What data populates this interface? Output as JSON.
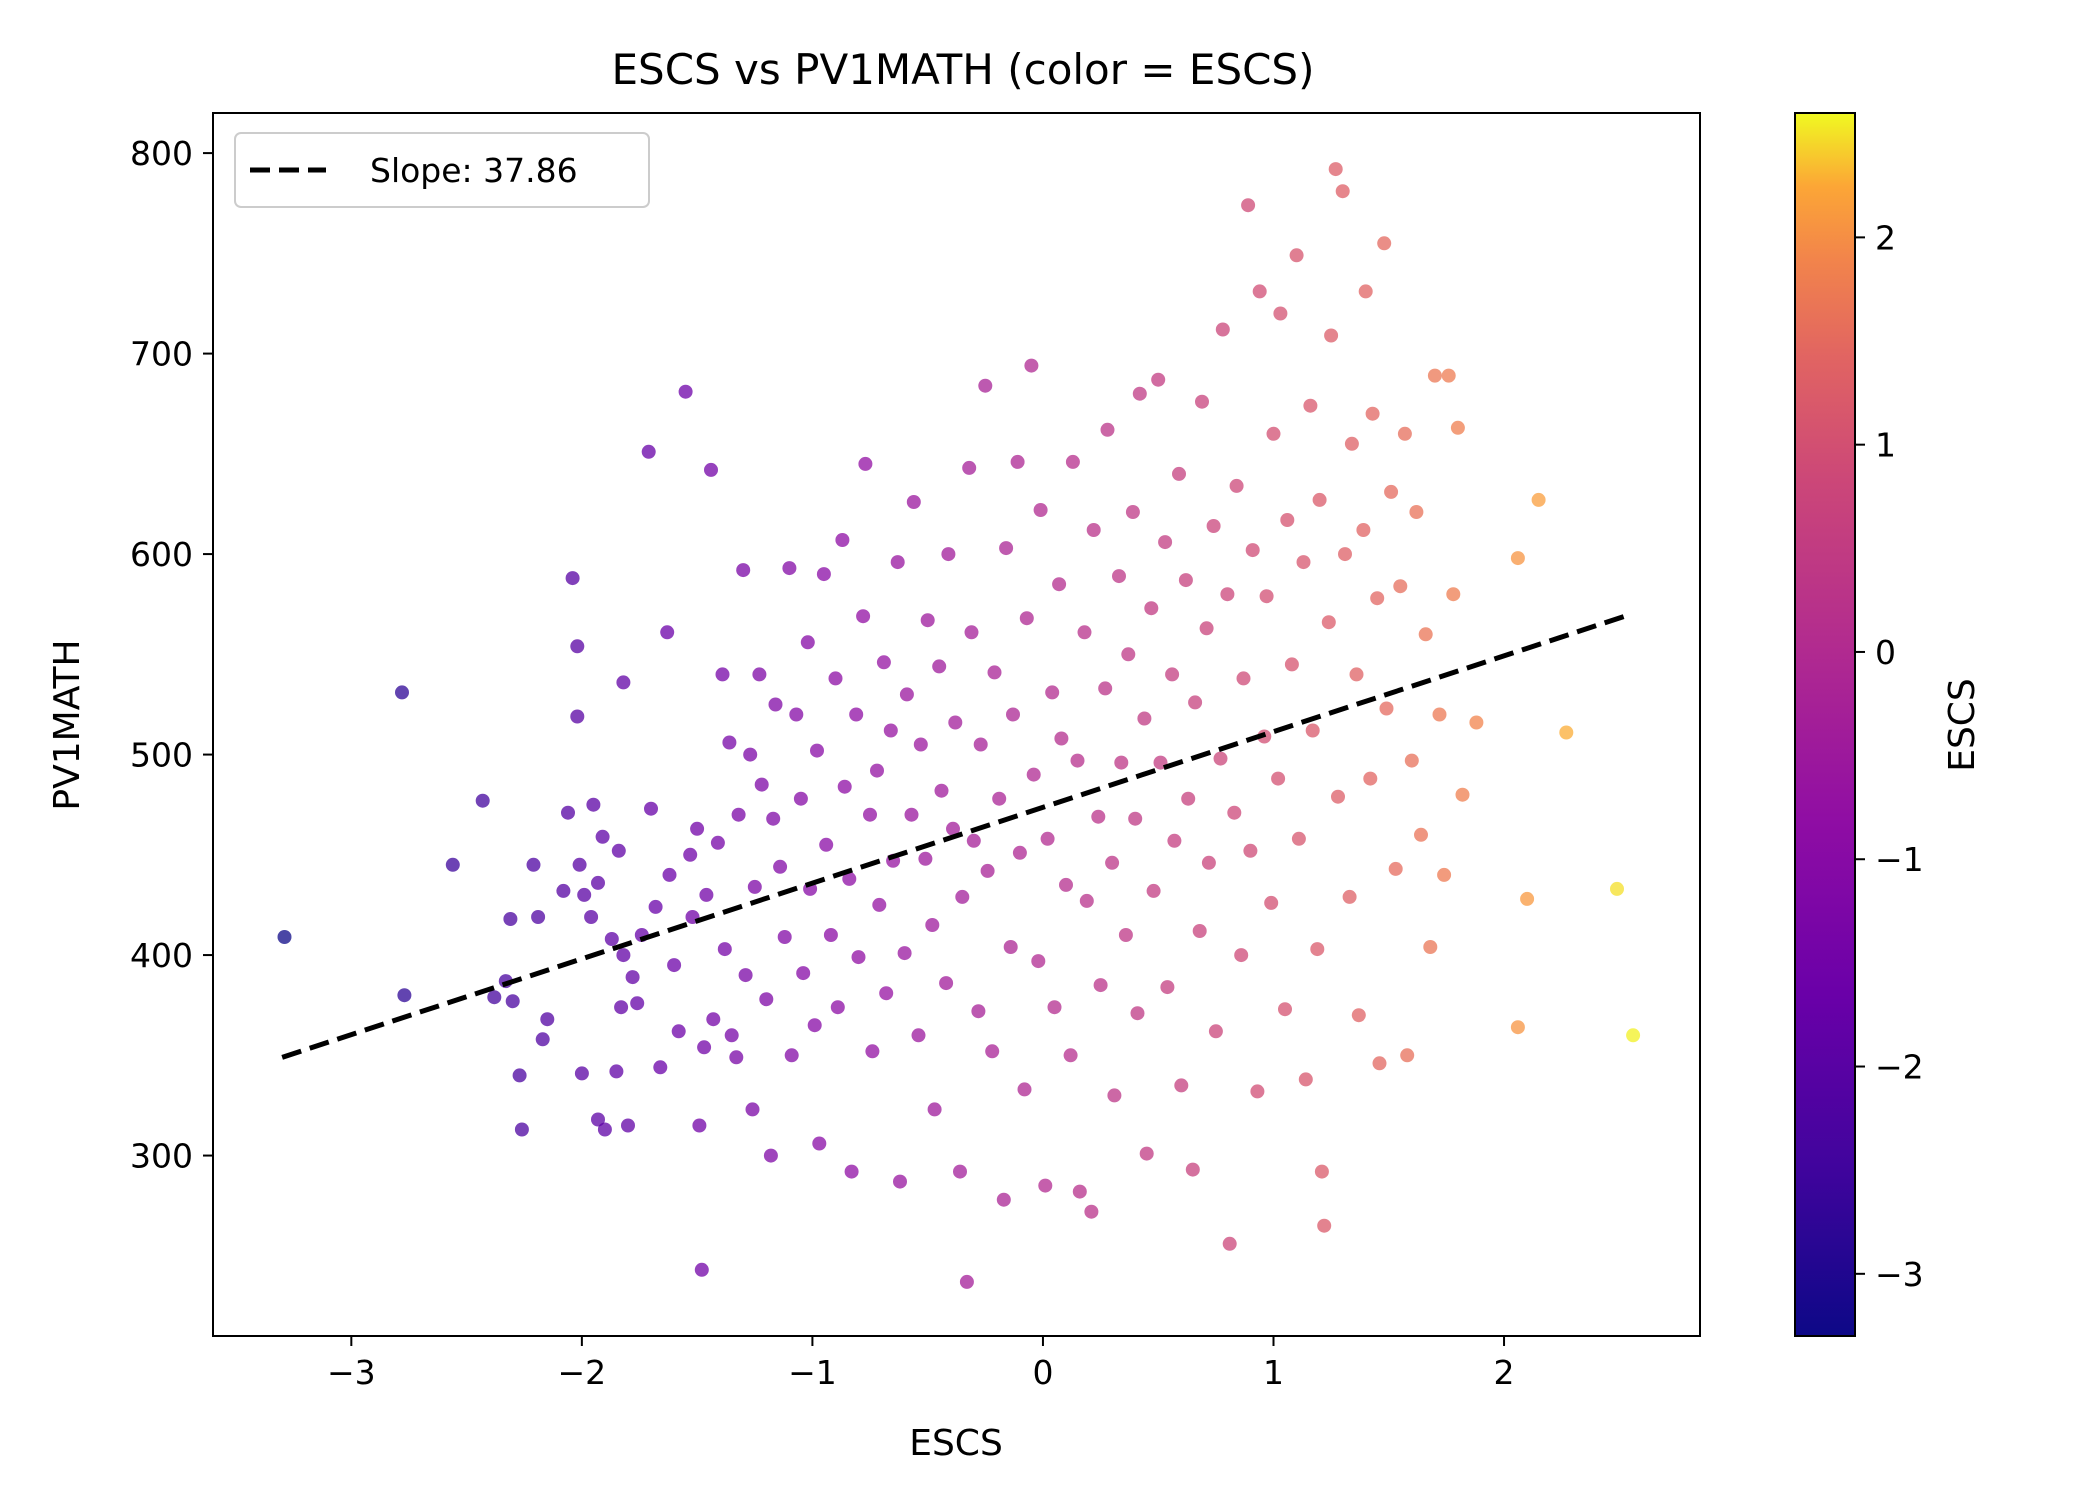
{
  "chart_data": {
    "type": "scatter",
    "title": "ESCS vs PV1MATH (color = ESCS)",
    "xlabel": "ESCS",
    "ylabel": "PV1MATH",
    "xlim": [
      -3.6,
      2.85
    ],
    "ylim": [
      210,
      820
    ],
    "xticks": [
      -3,
      -2,
      -1,
      0,
      1,
      2
    ],
    "yticks": [
      300,
      400,
      500,
      600,
      700,
      800
    ],
    "grid": false,
    "legend": {
      "position": "upper-left",
      "label": "Slope: 37.86"
    },
    "regression": {
      "slope": 37.86,
      "x": [
        -3.3,
        2.55
      ],
      "y": [
        349,
        570
      ],
      "style": "dashed",
      "color": "#000000"
    },
    "colorbar": {
      "label": "ESCS",
      "colormap": "plasma",
      "min": -3.3,
      "max": 2.6,
      "ticks": [
        -3,
        -2,
        -1,
        0,
        1,
        2
      ]
    },
    "points": [
      [
        -3.29,
        409
      ],
      [
        -2.78,
        531
      ],
      [
        -2.77,
        380
      ],
      [
        -2.56,
        445
      ],
      [
        -2.43,
        477
      ],
      [
        -2.38,
        379
      ],
      [
        -2.33,
        387
      ],
      [
        -2.31,
        418
      ],
      [
        -2.3,
        377
      ],
      [
        -2.27,
        340
      ],
      [
        -2.26,
        313
      ],
      [
        -2.21,
        445
      ],
      [
        -2.19,
        419
      ],
      [
        -2.17,
        358
      ],
      [
        -2.15,
        368
      ],
      [
        -2.08,
        432
      ],
      [
        -2.06,
        471
      ],
      [
        -2.04,
        588
      ],
      [
        -2.02,
        519
      ],
      [
        -2.02,
        554
      ],
      [
        -2.01,
        445
      ],
      [
        -2.0,
        341
      ],
      [
        -1.99,
        430
      ],
      [
        -1.96,
        419
      ],
      [
        -1.95,
        475
      ],
      [
        -1.93,
        318
      ],
      [
        -1.93,
        436
      ],
      [
        -1.91,
        459
      ],
      [
        -1.9,
        313
      ],
      [
        -1.87,
        408
      ],
      [
        -1.85,
        342
      ],
      [
        -1.84,
        452
      ],
      [
        -1.83,
        374
      ],
      [
        -1.82,
        536
      ],
      [
        -1.82,
        400
      ],
      [
        -1.8,
        315
      ],
      [
        -1.78,
        389
      ],
      [
        -1.76,
        376
      ],
      [
        -1.74,
        410
      ],
      [
        -1.71,
        651
      ],
      [
        -1.7,
        473
      ],
      [
        -1.68,
        424
      ],
      [
        -1.66,
        344
      ],
      [
        -1.63,
        561
      ],
      [
        -1.62,
        440
      ],
      [
        -1.6,
        395
      ],
      [
        -1.58,
        362
      ],
      [
        -1.55,
        681
      ],
      [
        -1.53,
        450
      ],
      [
        -1.52,
        419
      ],
      [
        -1.5,
        463
      ],
      [
        -1.49,
        315
      ],
      [
        -1.48,
        243
      ],
      [
        -1.47,
        354
      ],
      [
        -1.46,
        430
      ],
      [
        -1.44,
        642
      ],
      [
        -1.43,
        368
      ],
      [
        -1.41,
        456
      ],
      [
        -1.39,
        540
      ],
      [
        -1.38,
        403
      ],
      [
        -1.36,
        506
      ],
      [
        -1.35,
        360
      ],
      [
        -1.33,
        349
      ],
      [
        -1.32,
        470
      ],
      [
        -1.3,
        592
      ],
      [
        -1.29,
        390
      ],
      [
        -1.27,
        500
      ],
      [
        -1.26,
        323
      ],
      [
        -1.25,
        434
      ],
      [
        -1.23,
        540
      ],
      [
        -1.22,
        485
      ],
      [
        -1.2,
        378
      ],
      [
        -1.18,
        300
      ],
      [
        -1.17,
        468
      ],
      [
        -1.16,
        525
      ],
      [
        -1.14,
        444
      ],
      [
        -1.12,
        409
      ],
      [
        -1.1,
        593
      ],
      [
        -1.09,
        350
      ],
      [
        -1.07,
        520
      ],
      [
        -1.05,
        478
      ],
      [
        -1.04,
        391
      ],
      [
        -1.02,
        556
      ],
      [
        -1.01,
        433
      ],
      [
        -0.99,
        365
      ],
      [
        -0.98,
        502
      ],
      [
        -0.97,
        306
      ],
      [
        -0.95,
        590
      ],
      [
        -0.94,
        455
      ],
      [
        -0.92,
        410
      ],
      [
        -0.9,
        538
      ],
      [
        -0.89,
        374
      ],
      [
        -0.87,
        607
      ],
      [
        -0.86,
        484
      ],
      [
        -0.84,
        438
      ],
      [
        -0.83,
        292
      ],
      [
        -0.81,
        520
      ],
      [
        -0.8,
        399
      ],
      [
        -0.78,
        569
      ],
      [
        -0.77,
        645
      ],
      [
        -0.75,
        470
      ],
      [
        -0.74,
        352
      ],
      [
        -0.72,
        492
      ],
      [
        -0.71,
        425
      ],
      [
        -0.69,
        546
      ],
      [
        -0.68,
        381
      ],
      [
        -0.66,
        512
      ],
      [
        -0.65,
        447
      ],
      [
        -0.63,
        596
      ],
      [
        -0.62,
        287
      ],
      [
        -0.6,
        401
      ],
      [
        -0.59,
        530
      ],
      [
        -0.57,
        470
      ],
      [
        -0.56,
        626
      ],
      [
        -0.54,
        360
      ],
      [
        -0.53,
        505
      ],
      [
        -0.51,
        448
      ],
      [
        -0.5,
        567
      ],
      [
        -0.48,
        415
      ],
      [
        -0.47,
        323
      ],
      [
        -0.45,
        544
      ],
      [
        -0.44,
        482
      ],
      [
        -0.42,
        386
      ],
      [
        -0.41,
        600
      ],
      [
        -0.39,
        463
      ],
      [
        -0.38,
        516
      ],
      [
        -0.36,
        292
      ],
      [
        -0.35,
        429
      ],
      [
        -0.33,
        237
      ],
      [
        -0.32,
        643
      ],
      [
        -0.31,
        561
      ],
      [
        -0.3,
        457
      ],
      [
        -0.28,
        372
      ],
      [
        -0.27,
        505
      ],
      [
        -0.25,
        684
      ],
      [
        -0.24,
        442
      ],
      [
        -0.22,
        352
      ],
      [
        -0.21,
        541
      ],
      [
        -0.19,
        478
      ],
      [
        -0.17,
        278
      ],
      [
        -0.16,
        603
      ],
      [
        -0.14,
        404
      ],
      [
        -0.13,
        520
      ],
      [
        -0.11,
        646
      ],
      [
        -0.1,
        451
      ],
      [
        -0.08,
        333
      ],
      [
        -0.07,
        568
      ],
      [
        -0.05,
        694
      ],
      [
        -0.04,
        490
      ],
      [
        -0.02,
        397
      ],
      [
        -0.01,
        622
      ],
      [
        0.01,
        285
      ],
      [
        0.02,
        458
      ],
      [
        0.04,
        531
      ],
      [
        0.05,
        374
      ],
      [
        0.07,
        585
      ],
      [
        0.08,
        508
      ],
      [
        0.1,
        435
      ],
      [
        0.12,
        350
      ],
      [
        0.13,
        646
      ],
      [
        0.15,
        497
      ],
      [
        0.16,
        282
      ],
      [
        0.18,
        561
      ],
      [
        0.19,
        427
      ],
      [
        0.21,
        272
      ],
      [
        0.22,
        612
      ],
      [
        0.24,
        469
      ],
      [
        0.25,
        385
      ],
      [
        0.27,
        533
      ],
      [
        0.28,
        662
      ],
      [
        0.3,
        446
      ],
      [
        0.31,
        330
      ],
      [
        0.33,
        589
      ],
      [
        0.34,
        496
      ],
      [
        0.36,
        410
      ],
      [
        0.37,
        550
      ],
      [
        0.39,
        621
      ],
      [
        0.4,
        468
      ],
      [
        0.41,
        371
      ],
      [
        0.42,
        680
      ],
      [
        0.44,
        518
      ],
      [
        0.45,
        301
      ],
      [
        0.47,
        573
      ],
      [
        0.48,
        432
      ],
      [
        0.5,
        687
      ],
      [
        0.51,
        496
      ],
      [
        0.53,
        606
      ],
      [
        0.54,
        384
      ],
      [
        0.56,
        540
      ],
      [
        0.57,
        457
      ],
      [
        0.59,
        640
      ],
      [
        0.6,
        335
      ],
      [
        0.62,
        587
      ],
      [
        0.63,
        478
      ],
      [
        0.65,
        293
      ],
      [
        0.66,
        526
      ],
      [
        0.68,
        412
      ],
      [
        0.69,
        676
      ],
      [
        0.71,
        563
      ],
      [
        0.72,
        446
      ],
      [
        0.74,
        614
      ],
      [
        0.75,
        362
      ],
      [
        0.77,
        498
      ],
      [
        0.78,
        712
      ],
      [
        0.8,
        580
      ],
      [
        0.81,
        256
      ],
      [
        0.83,
        471
      ],
      [
        0.84,
        634
      ],
      [
        0.86,
        400
      ],
      [
        0.87,
        538
      ],
      [
        0.89,
        774
      ],
      [
        0.9,
        452
      ],
      [
        0.91,
        602
      ],
      [
        0.93,
        332
      ],
      [
        0.94,
        731
      ],
      [
        0.96,
        509
      ],
      [
        0.97,
        579
      ],
      [
        0.99,
        426
      ],
      [
        1.0,
        660
      ],
      [
        1.02,
        488
      ],
      [
        1.03,
        720
      ],
      [
        1.05,
        373
      ],
      [
        1.06,
        617
      ],
      [
        1.08,
        545
      ],
      [
        1.1,
        749
      ],
      [
        1.11,
        458
      ],
      [
        1.13,
        596
      ],
      [
        1.14,
        338
      ],
      [
        1.16,
        674
      ],
      [
        1.17,
        512
      ],
      [
        1.19,
        403
      ],
      [
        1.2,
        627
      ],
      [
        1.21,
        292
      ],
      [
        1.22,
        265
      ],
      [
        1.24,
        566
      ],
      [
        1.25,
        709
      ],
      [
        1.27,
        792
      ],
      [
        1.28,
        479
      ],
      [
        1.3,
        781
      ],
      [
        1.31,
        600
      ],
      [
        1.33,
        429
      ],
      [
        1.34,
        655
      ],
      [
        1.36,
        540
      ],
      [
        1.37,
        370
      ],
      [
        1.39,
        612
      ],
      [
        1.4,
        731
      ],
      [
        1.42,
        488
      ],
      [
        1.43,
        670
      ],
      [
        1.45,
        578
      ],
      [
        1.46,
        346
      ],
      [
        1.48,
        755
      ],
      [
        1.49,
        523
      ],
      [
        1.51,
        631
      ],
      [
        1.53,
        443
      ],
      [
        1.55,
        584
      ],
      [
        1.57,
        660
      ],
      [
        1.58,
        350
      ],
      [
        1.6,
        497
      ],
      [
        1.62,
        621
      ],
      [
        1.64,
        460
      ],
      [
        1.66,
        560
      ],
      [
        1.68,
        404
      ],
      [
        1.7,
        689
      ],
      [
        1.72,
        520
      ],
      [
        1.74,
        440
      ],
      [
        1.76,
        689
      ],
      [
        1.78,
        580
      ],
      [
        1.8,
        663
      ],
      [
        1.82,
        480
      ],
      [
        1.88,
        516
      ],
      [
        2.06,
        598
      ],
      [
        2.06,
        364
      ],
      [
        2.1,
        428
      ],
      [
        2.15,
        627
      ],
      [
        2.27,
        511
      ],
      [
        2.49,
        433
      ],
      [
        2.56,
        360
      ]
    ]
  }
}
